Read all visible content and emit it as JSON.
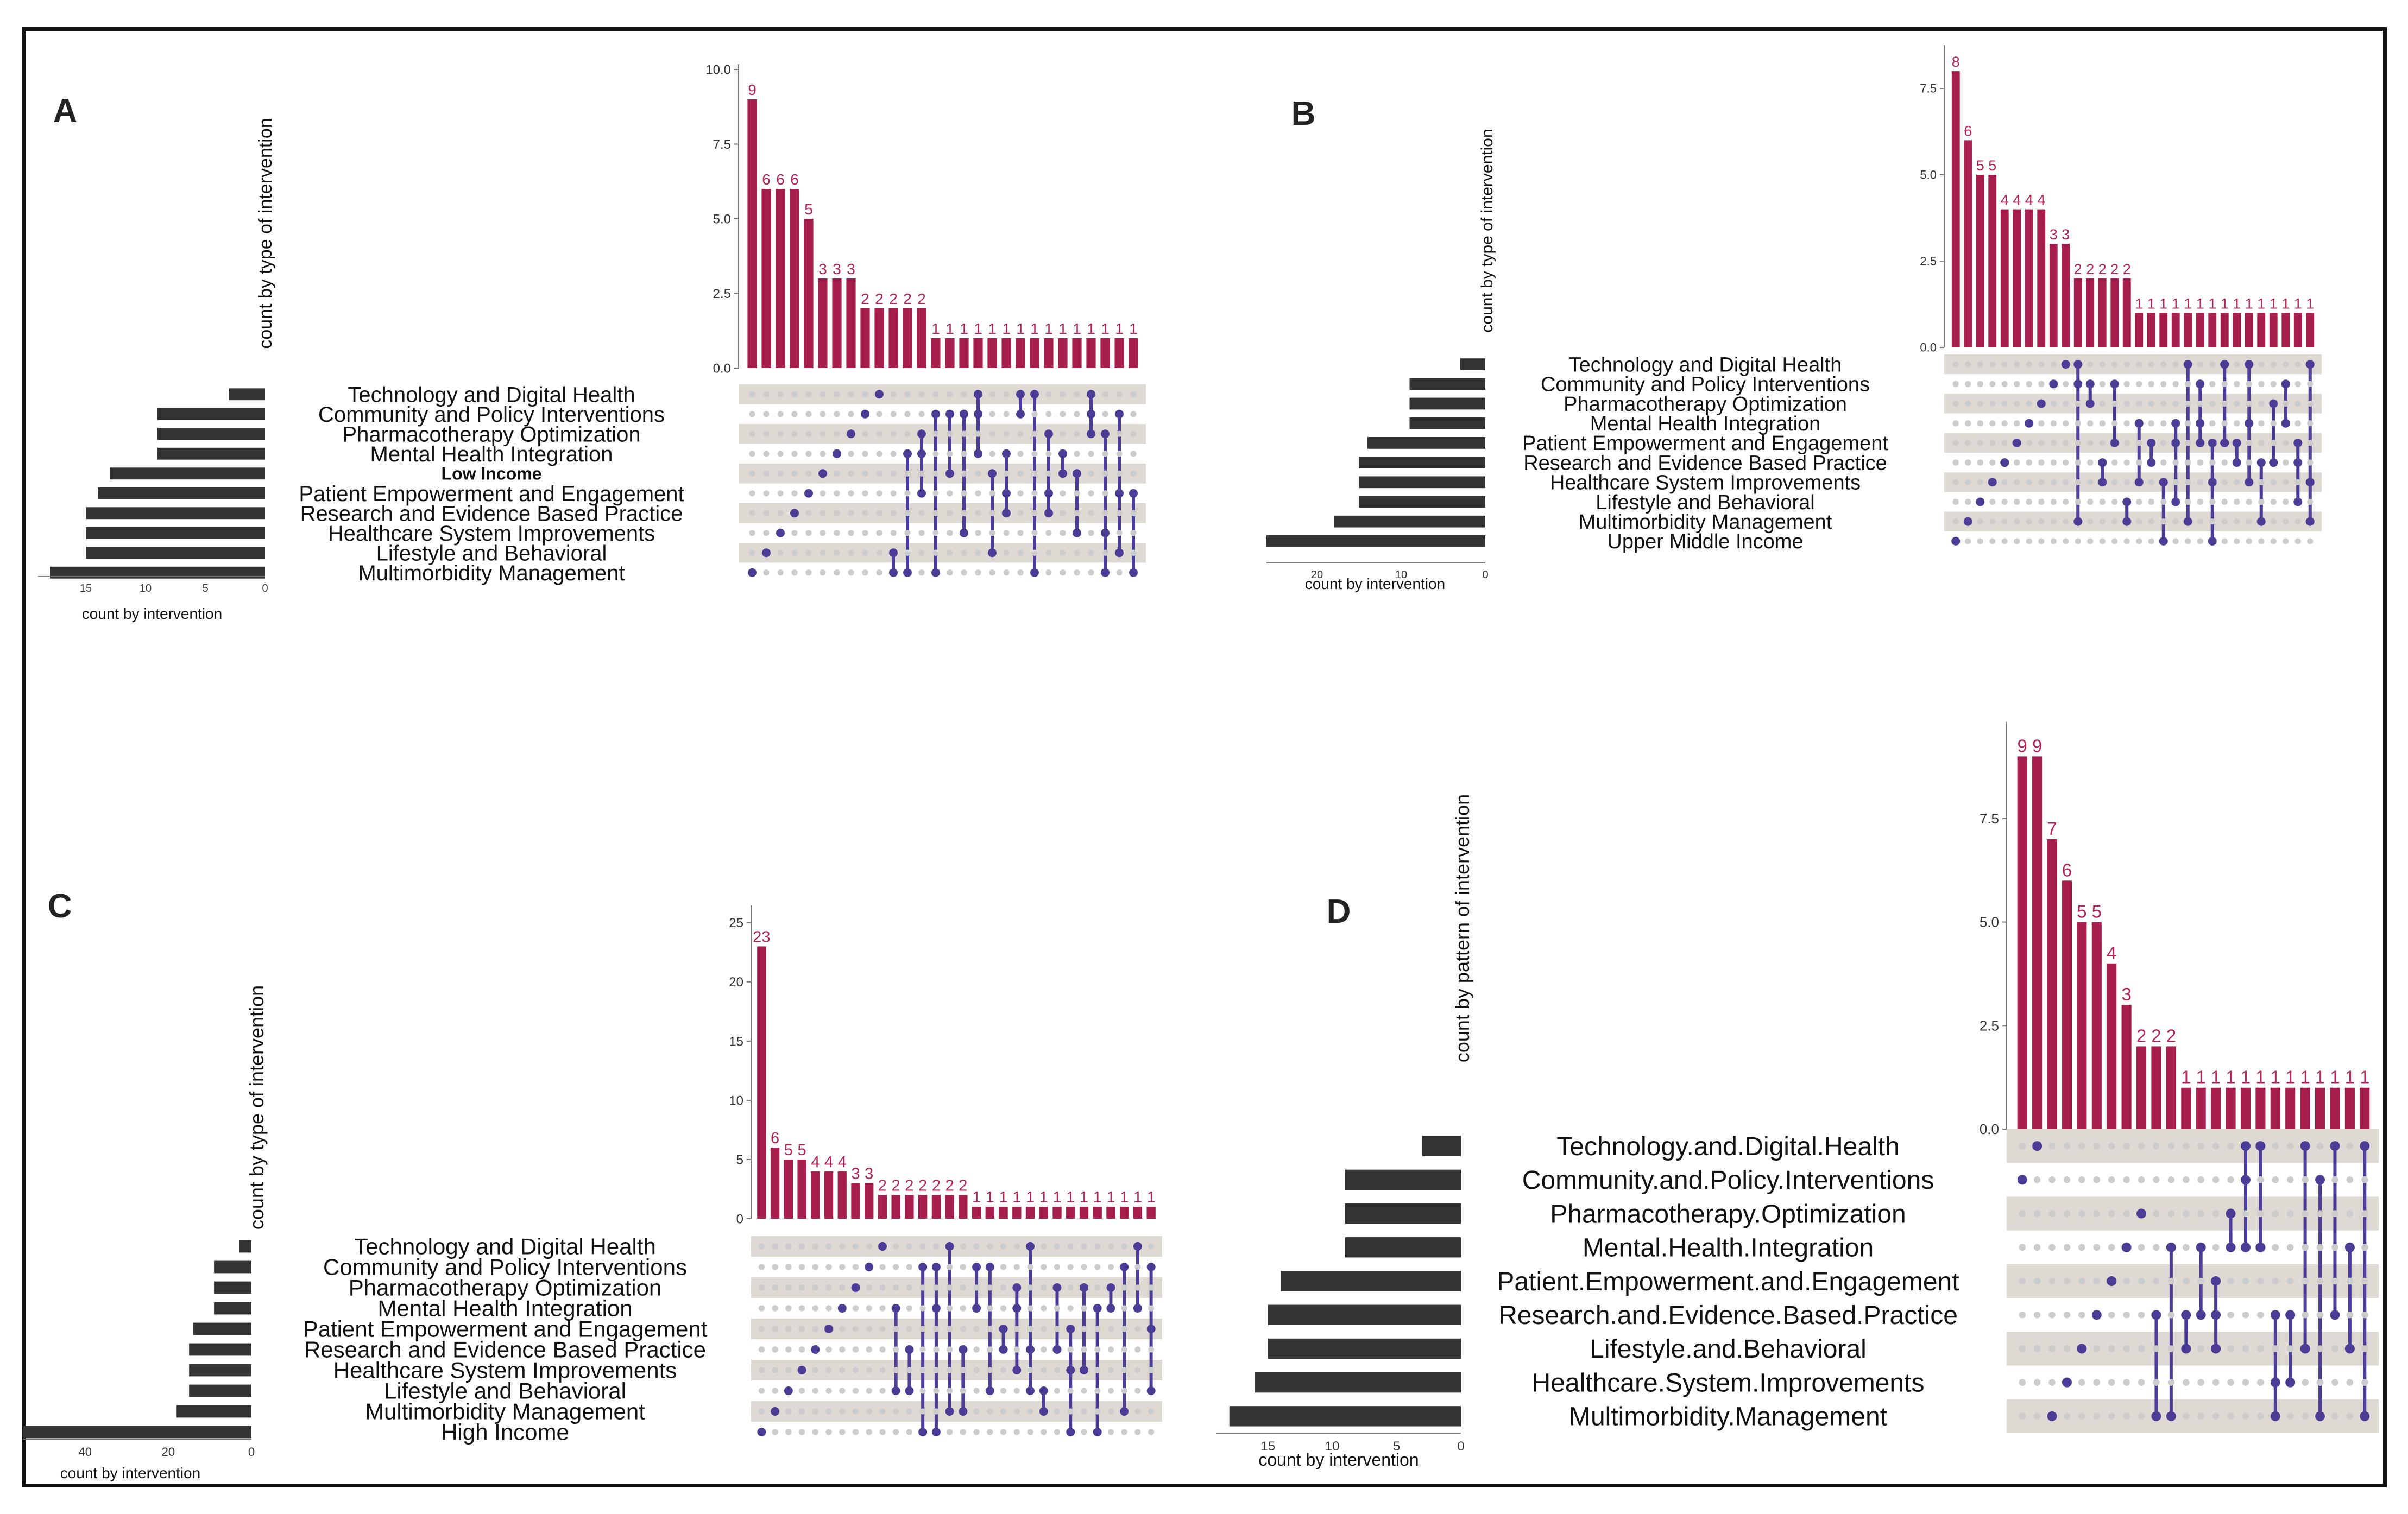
{
  "colors": {
    "intersection_bar": "#a61e4d",
    "set_bar": "#333333",
    "dot_active": "#4b3d96",
    "dot_inactive": "#cccccc",
    "stripe": "#dedad3",
    "bar_label": "#b0245a"
  },
  "chart_data": [
    {
      "type": "bar",
      "panel": "A",
      "title": "A",
      "ylabel": "count by type of intervention",
      "xlabel": "count by intervention",
      "ylim": [
        0,
        10
      ],
      "yticks": [
        "0.0",
        "2.5",
        "5.0",
        "7.5",
        "10.0"
      ],
      "xticks": [
        "15",
        "10",
        "5",
        "0"
      ],
      "xmax": 19,
      "rows": [
        "Technology and Digital Health",
        "Community and Policy Interventions",
        "Pharmacotherapy Optimization",
        "Mental Health Integration",
        "Low Income",
        "Patient Empowerment and Engagement",
        "Research and Evidence Based Practice",
        "Healthcare System Improvements",
        "Lifestyle and Behavioral",
        "Multimorbidity Management"
      ],
      "small_row": 4,
      "set_sizes": [
        3,
        9,
        9,
        9,
        13,
        14,
        15,
        15,
        15,
        18
      ],
      "values": [
        9,
        6,
        6,
        6,
        5,
        3,
        3,
        3,
        2,
        2,
        2,
        2,
        2,
        1,
        1,
        1,
        1,
        1,
        1,
        1,
        1,
        1,
        1,
        1,
        1,
        1,
        1,
        1
      ],
      "value_labels": [
        "9",
        "6",
        "6",
        "6",
        "5",
        "3",
        "3",
        "3",
        "2",
        "2",
        "2",
        "2",
        "2",
        "1",
        "1",
        "1",
        "1",
        "1",
        "1",
        "1",
        "1",
        "1",
        "1",
        "1",
        "1",
        "1",
        "1",
        "1"
      ]
    },
    {
      "type": "bar",
      "panel": "B",
      "title": "B",
      "ylabel": "count by type of intervention",
      "xlabel": "count by intervention",
      "ylim": [
        0,
        8.6
      ],
      "yticks": [
        "0.0",
        "2.5",
        "5.0",
        "7.5"
      ],
      "xticks": [
        "20",
        "10",
        "0"
      ],
      "xmax": 26,
      "rows": [
        "Technology and Digital Health",
        "Community and Policy Interventions",
        "Pharmacotherapy Optimization",
        "Mental Health Integration",
        "Patient Empowerment and Engagement",
        "Research and Evidence Based Practice",
        "Healthcare System Improvements",
        "Lifestyle and Behavioral",
        "Multimorbidity Management",
        "Upper Middle Income"
      ],
      "small_row": -1,
      "set_sizes": [
        3,
        9,
        9,
        9,
        14,
        15,
        15,
        15,
        18,
        26
      ],
      "values": [
        8,
        6,
        5,
        5,
        4,
        4,
        4,
        4,
        3,
        3,
        2,
        2,
        2,
        2,
        2,
        1,
        1,
        1,
        1,
        1,
        1,
        1,
        1,
        1,
        1,
        1,
        1,
        1,
        1,
        1
      ],
      "value_labels": [
        "8",
        "6",
        "5",
        "5",
        "4",
        "4",
        "4",
        "4",
        "3",
        "3",
        "2",
        "2",
        "2",
        "2",
        "2",
        "1",
        "1",
        "1",
        "1",
        "1",
        "1",
        "1",
        "1",
        "1",
        "1",
        "1",
        "1",
        "1",
        "1",
        "1"
      ]
    },
    {
      "type": "bar",
      "panel": "C",
      "title": "C",
      "ylabel": "count by type of intervention",
      "xlabel": "count by intervention",
      "ylim": [
        0,
        26
      ],
      "yticks": [
        "0",
        "5",
        "10",
        "15",
        "20",
        "25"
      ],
      "xticks": [
        "40",
        "20",
        "0"
      ],
      "xmax": 55,
      "rows": [
        "Technology and Digital Health",
        "Community and Policy Interventions",
        "Pharmacotherapy Optimization",
        "Mental Health Integration",
        "Patient Empowerment and Engagement",
        "Research and Evidence Based Practice",
        "Healthcare System Improvements",
        "Lifestyle and Behavioral",
        "Multimorbidity Management",
        "High Income"
      ],
      "small_row": -1,
      "set_sizes": [
        3,
        9,
        9,
        9,
        14,
        15,
        15,
        15,
        18,
        55
      ],
      "values": [
        23,
        6,
        5,
        5,
        4,
        4,
        4,
        3,
        3,
        2,
        2,
        2,
        2,
        2,
        2,
        2,
        1,
        1,
        1,
        1,
        1,
        1,
        1,
        1,
        1,
        1,
        1,
        1,
        1,
        1
      ],
      "value_labels": [
        "23",
        "6",
        "5",
        "5",
        "4",
        "4",
        "4",
        "3",
        "3",
        "2",
        "2",
        "2",
        "2",
        "2",
        "2",
        "2",
        "1",
        "1",
        "1",
        "1",
        "1",
        "1",
        "1",
        "1",
        "1",
        "1",
        "1",
        "1",
        "1",
        "1"
      ]
    },
    {
      "type": "bar",
      "panel": "D",
      "title": "D",
      "ylabel": "count by pattern of intervention",
      "xlabel": "count by intervention",
      "ylim": [
        0,
        9.7
      ],
      "yticks": [
        "0.0",
        "2.5",
        "5.0",
        "7.5"
      ],
      "xticks": [
        "15",
        "10",
        "5",
        "0"
      ],
      "xmax": 19,
      "rows": [
        "Technology.and.Digital.Health",
        "Community.and.Policy.Interventions",
        "Pharmacotherapy.Optimization",
        "Mental.Health.Integration",
        "Patient.Empowerment.and.Engagement",
        "Research.and.Evidence.Based.Practice",
        "Lifestyle.and.Behavioral",
        "Healthcare.System.Improvements",
        "Multimorbidity.Management"
      ],
      "small_row": -1,
      "set_sizes": [
        3,
        9,
        9,
        9,
        14,
        15,
        15,
        16,
        18
      ],
      "values": [
        9,
        9,
        7,
        6,
        5,
        5,
        4,
        3,
        2,
        2,
        2,
        1,
        1,
        1,
        1,
        1,
        1,
        1,
        1,
        1,
        1,
        1,
        1,
        1
      ],
      "value_labels": [
        "9",
        "9",
        "7",
        "6",
        "5",
        "5",
        "4",
        "3",
        "2",
        "2",
        "2",
        "1",
        "1",
        "1",
        "1",
        "1",
        "1",
        "1",
        "1",
        "1",
        "1",
        "1",
        "1",
        "1"
      ]
    }
  ]
}
